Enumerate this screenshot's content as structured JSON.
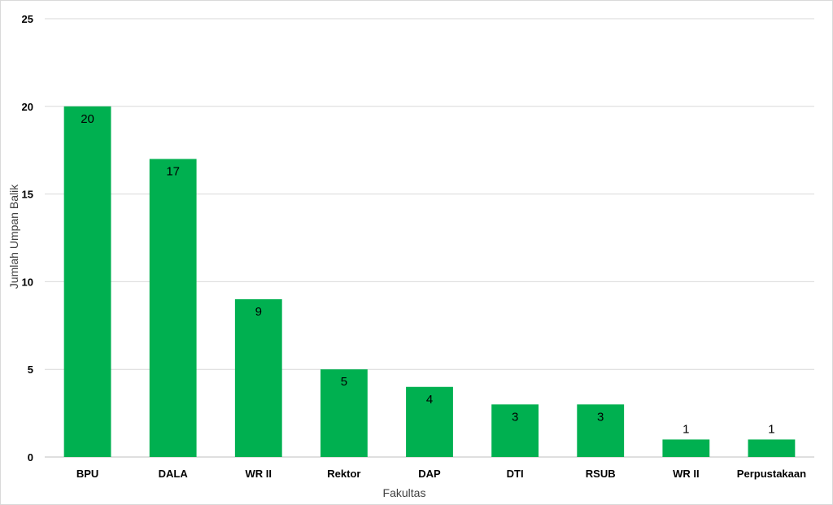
{
  "chart_data": {
    "type": "bar",
    "title": "",
    "xlabel": "Fakultas",
    "ylabel": "Jumlah Umpan Balik",
    "categories": [
      "BPU",
      "DALA",
      "WR II",
      "Rektor",
      "DAP",
      "DTI",
      "RSUB",
      "WR II",
      "Perpustakaan"
    ],
    "values": [
      20,
      17,
      9,
      5,
      4,
      3,
      3,
      1,
      1
    ],
    "ylim": [
      0,
      25
    ],
    "yticks": [
      0,
      5,
      10,
      15,
      20,
      25
    ],
    "grid": true,
    "legend": "none",
    "bar_color": "#00b050",
    "data_labels": true
  }
}
